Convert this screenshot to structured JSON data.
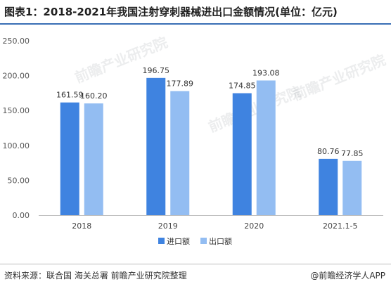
{
  "title": "图表1：2018-2021年我国注射穿刺器械进出口金额情况(单位：亿元)",
  "footer": {
    "source": "资料来源：联合国 海关总署 前瞻产业研究院整理",
    "brand": "@前瞻经济学人APP"
  },
  "watermark": "前瞻产业研究院",
  "chart_data": {
    "type": "bar",
    "categories": [
      "2018",
      "2019",
      "2020",
      "2021.1-5"
    ],
    "series": [
      {
        "name": "进口额",
        "values": [
          161.59,
          196.75,
          174.85,
          80.76
        ],
        "color": "#3f83e0"
      },
      {
        "name": "出口额",
        "values": [
          160.2,
          177.89,
          193.08,
          77.85
        ],
        "color": "#93bdf2"
      }
    ],
    "yticks": [
      "0.00",
      "50.00",
      "100.00",
      "150.00",
      "200.00",
      "250.00"
    ],
    "ylim": [
      0,
      250
    ],
    "grid": false,
    "legend_position": "bottom"
  }
}
